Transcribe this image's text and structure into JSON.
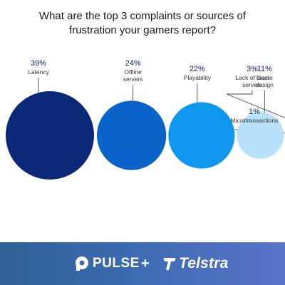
{
  "title": "What are the top 3 complaints or sources of frustration your gamers report?",
  "chart_data": {
    "type": "bubble",
    "categories": [
      "Latency",
      "Offline servers",
      "Playability",
      "Game design",
      "Lack of local servers",
      "Microtransactions"
    ],
    "values": [
      39,
      24,
      22,
      11,
      3,
      1
    ],
    "value_labels": [
      "39%",
      "24%",
      "22%",
      "11%",
      "3%",
      "1%"
    ],
    "label_lines": [
      [
        "Latency"
      ],
      [
        "Offline",
        "servers"
      ],
      [
        "Playability"
      ],
      [
        "Game",
        "design"
      ],
      [
        "Lack of local",
        "servers"
      ],
      [
        "Microtransactions"
      ]
    ],
    "colors": [
      "#0b2778",
      "#0a63c9",
      "#0f96ef",
      "#b9e1fb",
      "#0f96ef",
      "#0f96ef"
    ],
    "unit": "%"
  },
  "footer": {
    "pulse_label": "PULSE",
    "plus": "+",
    "telstra_label": "Telstra",
    "background_colors": [
      "#2f5f93",
      "#5a73c9"
    ]
  }
}
